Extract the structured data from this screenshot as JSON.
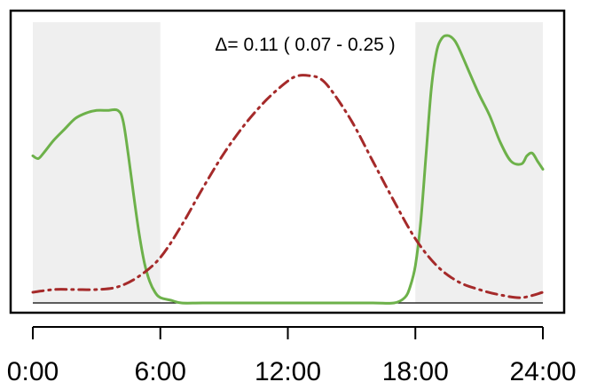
{
  "chart_data": {
    "type": "line",
    "annotation": "Δ= 0.11 ( 0.07 - 0.25 )",
    "xlim": [
      -1,
      25
    ],
    "ylim": [
      0,
      1
    ],
    "x_ticks": [
      0,
      6,
      12,
      18,
      24
    ],
    "x_tick_labels": [
      "0:00",
      "6:00",
      "12:00",
      "18:00",
      "24:00"
    ],
    "shaded_intervals": [
      [
        0,
        6
      ],
      [
        18,
        24
      ]
    ],
    "shade_color": "#efefef",
    "grid": false,
    "legend": "none",
    "series": [
      {
        "style": "solid",
        "color": "#6db14a",
        "x": [
          0,
          0.25,
          0.5,
          1,
          1.5,
          2,
          2.5,
          3,
          3.5,
          4,
          4.25,
          4.5,
          4.75,
          5,
          5.25,
          5.5,
          5.75,
          6,
          6.5,
          7,
          8,
          10,
          12,
          14,
          16,
          17,
          17.5,
          17.75,
          18,
          18.25,
          18.5,
          18.75,
          19,
          19.25,
          19.5,
          19.75,
          20,
          20.5,
          21,
          21.5,
          22,
          22.5,
          23,
          23.25,
          23.5,
          23.75,
          24
        ],
        "y": [
          0.55,
          0.54,
          0.56,
          0.61,
          0.65,
          0.69,
          0.71,
          0.72,
          0.72,
          0.72,
          0.68,
          0.55,
          0.4,
          0.26,
          0.15,
          0.08,
          0.04,
          0.02,
          0.01,
          0.0,
          0.0,
          0.0,
          0.0,
          0.0,
          0.0,
          0.0,
          0.02,
          0.06,
          0.14,
          0.3,
          0.55,
          0.8,
          0.94,
          0.99,
          1.0,
          0.99,
          0.96,
          0.87,
          0.78,
          0.7,
          0.6,
          0.53,
          0.52,
          0.55,
          0.56,
          0.53,
          0.5
        ]
      },
      {
        "style": "dashdot",
        "color": "#a52a2a",
        "x": [
          0,
          1,
          2,
          3,
          4,
          5,
          6,
          7,
          8,
          9,
          10,
          11,
          12,
          12.5,
          13,
          13.5,
          14,
          15,
          16,
          17,
          18,
          19,
          20,
          21,
          22,
          23,
          24
        ],
        "y": [
          0.04,
          0.05,
          0.05,
          0.05,
          0.06,
          0.1,
          0.17,
          0.29,
          0.43,
          0.56,
          0.67,
          0.76,
          0.83,
          0.85,
          0.85,
          0.84,
          0.8,
          0.68,
          0.53,
          0.38,
          0.24,
          0.14,
          0.08,
          0.05,
          0.03,
          0.02,
          0.04
        ]
      }
    ]
  }
}
